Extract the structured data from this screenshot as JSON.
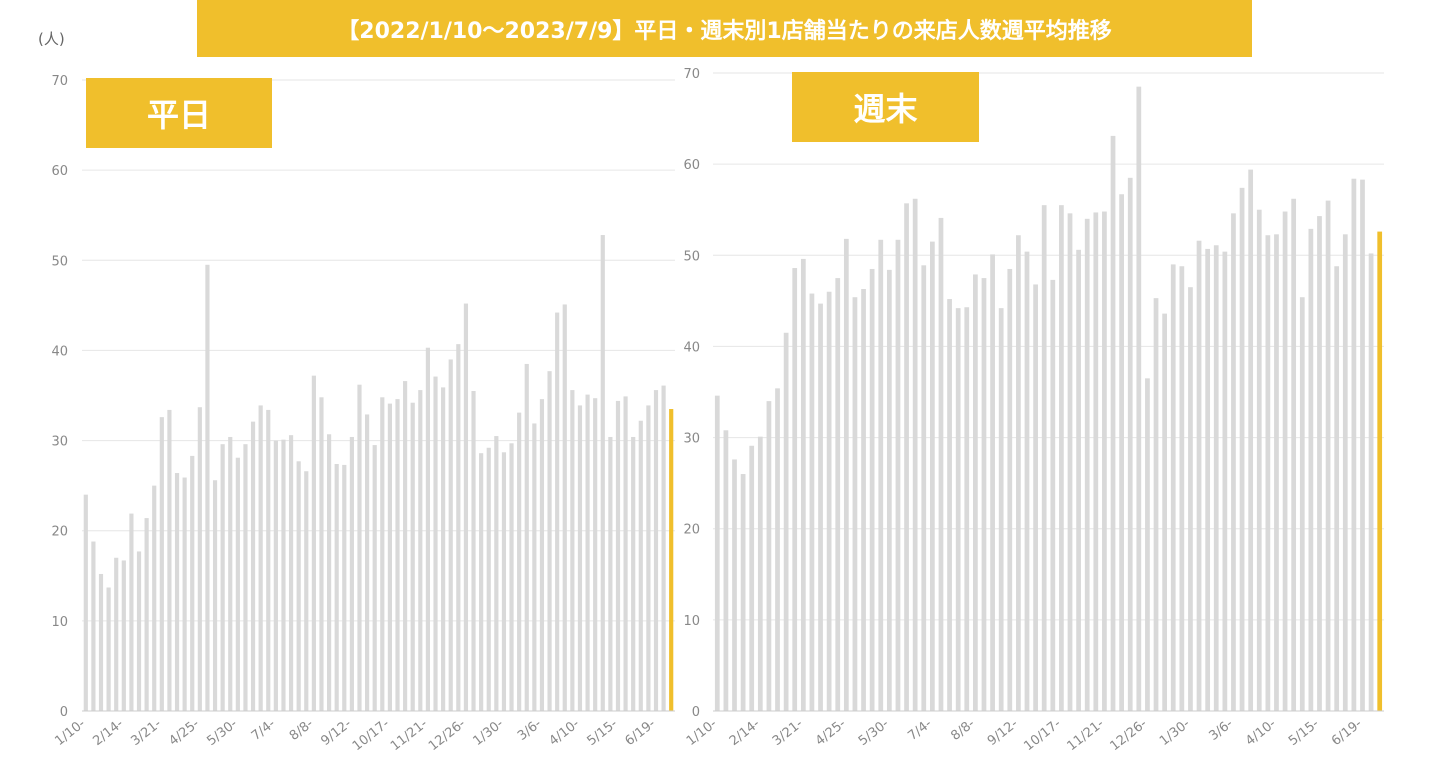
{
  "title": "【2022/1/10～2023/7/9】平日・週末別1店舗当たりの来店人数週平均推移",
  "unit_label": "(人)",
  "colors": {
    "bar": "#d9d9d9",
    "highlight": "#f0bf2c",
    "grid": "#e6e6e6",
    "axis": "#888888",
    "banner_text": "#ffffff"
  },
  "chart_data": [
    {
      "type": "bar",
      "panel_label": "平日",
      "ylim": [
        0,
        70
      ],
      "yticks": [
        0,
        10,
        20,
        30,
        40,
        50,
        60,
        70
      ],
      "grid": true,
      "x_tick_labels": [
        {
          "index": 0,
          "label": "1/10-"
        },
        {
          "index": 5,
          "label": "2/14-"
        },
        {
          "index": 10,
          "label": "3/21-"
        },
        {
          "index": 15,
          "label": "4/25-"
        },
        {
          "index": 20,
          "label": "5/30-"
        },
        {
          "index": 25,
          "label": "7/4-"
        },
        {
          "index": 30,
          "label": "8/8-"
        },
        {
          "index": 35,
          "label": "9/12-"
        },
        {
          "index": 40,
          "label": "10/17-"
        },
        {
          "index": 45,
          "label": "11/21-"
        },
        {
          "index": 50,
          "label": "12/26-"
        },
        {
          "index": 55,
          "label": "1/30-"
        },
        {
          "index": 60,
          "label": "3/6-"
        },
        {
          "index": 65,
          "label": "4/10-"
        },
        {
          "index": 70,
          "label": "5/15-"
        },
        {
          "index": 75,
          "label": "6/19-"
        }
      ],
      "highlight_last": true,
      "values": [
        24,
        18.8,
        15.2,
        13.7,
        17,
        16.7,
        21.9,
        17.7,
        21.4,
        25,
        32.6,
        33.4,
        26.4,
        25.9,
        28.3,
        33.7,
        49.5,
        25.6,
        29.6,
        30.4,
        28.1,
        29.6,
        32.1,
        33.9,
        33.4,
        30,
        30.1,
        30.6,
        27.7,
        26.6,
        37.2,
        34.8,
        30.7,
        27.4,
        27.3,
        30.4,
        36.2,
        32.9,
        29.5,
        34.8,
        34.1,
        34.6,
        36.6,
        34.2,
        35.6,
        40.3,
        37.1,
        35.9,
        39,
        40.7,
        45.2,
        35.5,
        28.6,
        29.2,
        30.5,
        28.7,
        29.7,
        33.1,
        38.5,
        31.9,
        34.6,
        37.7,
        44.2,
        45.1,
        35.6,
        33.9,
        35.1,
        34.7,
        52.8,
        30.4,
        34.4,
        34.9,
        30.4,
        32.2,
        33.9,
        35.6,
        36.1,
        33.5
      ]
    },
    {
      "type": "bar",
      "panel_label": "週末",
      "ylim": [
        0,
        70
      ],
      "yticks": [
        0,
        10,
        20,
        30,
        40,
        50,
        60,
        70
      ],
      "grid": true,
      "x_tick_labels": [
        {
          "index": 0,
          "label": "1/10-"
        },
        {
          "index": 5,
          "label": "2/14-"
        },
        {
          "index": 10,
          "label": "3/21-"
        },
        {
          "index": 15,
          "label": "4/25-"
        },
        {
          "index": 20,
          "label": "5/30-"
        },
        {
          "index": 25,
          "label": "7/4-"
        },
        {
          "index": 30,
          "label": "8/8-"
        },
        {
          "index": 35,
          "label": "9/12-"
        },
        {
          "index": 40,
          "label": "10/17-"
        },
        {
          "index": 45,
          "label": "11/21-"
        },
        {
          "index": 50,
          "label": "12/26-"
        },
        {
          "index": 55,
          "label": "1/30-"
        },
        {
          "index": 60,
          "label": "3/6-"
        },
        {
          "index": 65,
          "label": "4/10-"
        },
        {
          "index": 70,
          "label": "5/15-"
        },
        {
          "index": 75,
          "label": "6/19-"
        }
      ],
      "highlight_last": true,
      "values": [
        34.6,
        30.8,
        27.6,
        26,
        29.1,
        30.1,
        34,
        35.4,
        41.5,
        48.6,
        49.6,
        45.8,
        44.7,
        46,
        47.5,
        51.8,
        45.4,
        46.3,
        48.5,
        51.7,
        48.4,
        51.7,
        55.7,
        56.2,
        48.9,
        51.5,
        54.1,
        45.2,
        44.2,
        44.3,
        47.9,
        47.5,
        50.1,
        44.2,
        48.5,
        52.2,
        50.4,
        46.8,
        55.5,
        47.3,
        55.5,
        54.6,
        50.6,
        54,
        54.7,
        54.8,
        63.1,
        56.7,
        58.5,
        68.5,
        36.5,
        45.3,
        43.6,
        49,
        48.8,
        46.5,
        51.6,
        50.7,
        51.1,
        50.4,
        54.6,
        57.4,
        59.4,
        55,
        52.2,
        52.3,
        54.8,
        56.2,
        45.4,
        52.9,
        54.3,
        56,
        48.8,
        52.3,
        58.4,
        58.3,
        50.2,
        52.6
      ]
    }
  ]
}
